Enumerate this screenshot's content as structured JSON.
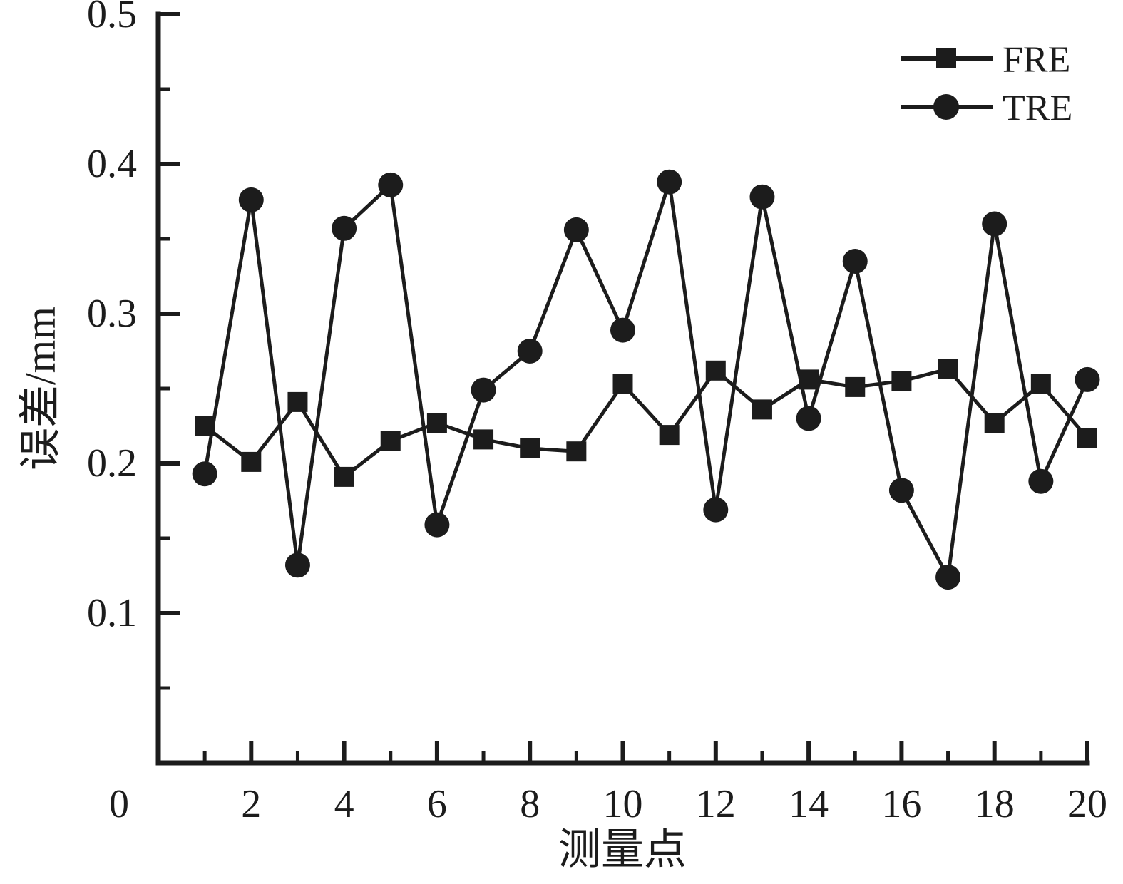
{
  "chart_data": {
    "type": "line",
    "title": "",
    "xlabel": "测量点",
    "ylabel": "误差/mm",
    "x": [
      1,
      2,
      3,
      4,
      5,
      6,
      7,
      8,
      9,
      10,
      11,
      12,
      13,
      14,
      15,
      16,
      17,
      18,
      19,
      20
    ],
    "series": [
      {
        "name": "FRE",
        "marker": "square",
        "values": [
          0.225,
          0.201,
          0.241,
          0.191,
          0.215,
          0.227,
          0.216,
          0.21,
          0.208,
          0.253,
          0.219,
          0.262,
          0.236,
          0.256,
          0.251,
          0.255,
          0.263,
          0.227,
          0.253,
          0.217
        ]
      },
      {
        "name": "TRE",
        "marker": "circle",
        "values": [
          0.193,
          0.376,
          0.132,
          0.357,
          0.386,
          0.159,
          0.249,
          0.275,
          0.356,
          0.289,
          0.388,
          0.169,
          0.378,
          0.23,
          0.335,
          0.182,
          0.124,
          0.36,
          0.188,
          0.256
        ]
      }
    ],
    "xlim": [
      0,
      20
    ],
    "ylim": [
      0,
      0.5
    ],
    "x_major_ticks": [
      2,
      4,
      6,
      8,
      10,
      12,
      14,
      16,
      18,
      20
    ],
    "x_minor_ticks": [
      1,
      3,
      5,
      7,
      9,
      11,
      13,
      15,
      17,
      19
    ],
    "y_major_ticks": [
      0.1,
      0.2,
      0.3,
      0.4,
      0.5
    ],
    "y_minor_ticks": [
      0.05,
      0.15,
      0.25,
      0.35,
      0.45
    ],
    "x_tick_labels": [
      "2",
      "4",
      "6",
      "8",
      "10",
      "12",
      "14",
      "16",
      "18",
      "20"
    ],
    "y_tick_labels": [
      "0.1",
      "0.2",
      "0.3",
      "0.4",
      "0.5"
    ],
    "origin_label": "0",
    "legend_position": "top-right",
    "grid": false,
    "line_color": "#1c1c1c"
  },
  "legend": {
    "items": [
      {
        "label": "FRE"
      },
      {
        "label": "TRE"
      }
    ]
  }
}
